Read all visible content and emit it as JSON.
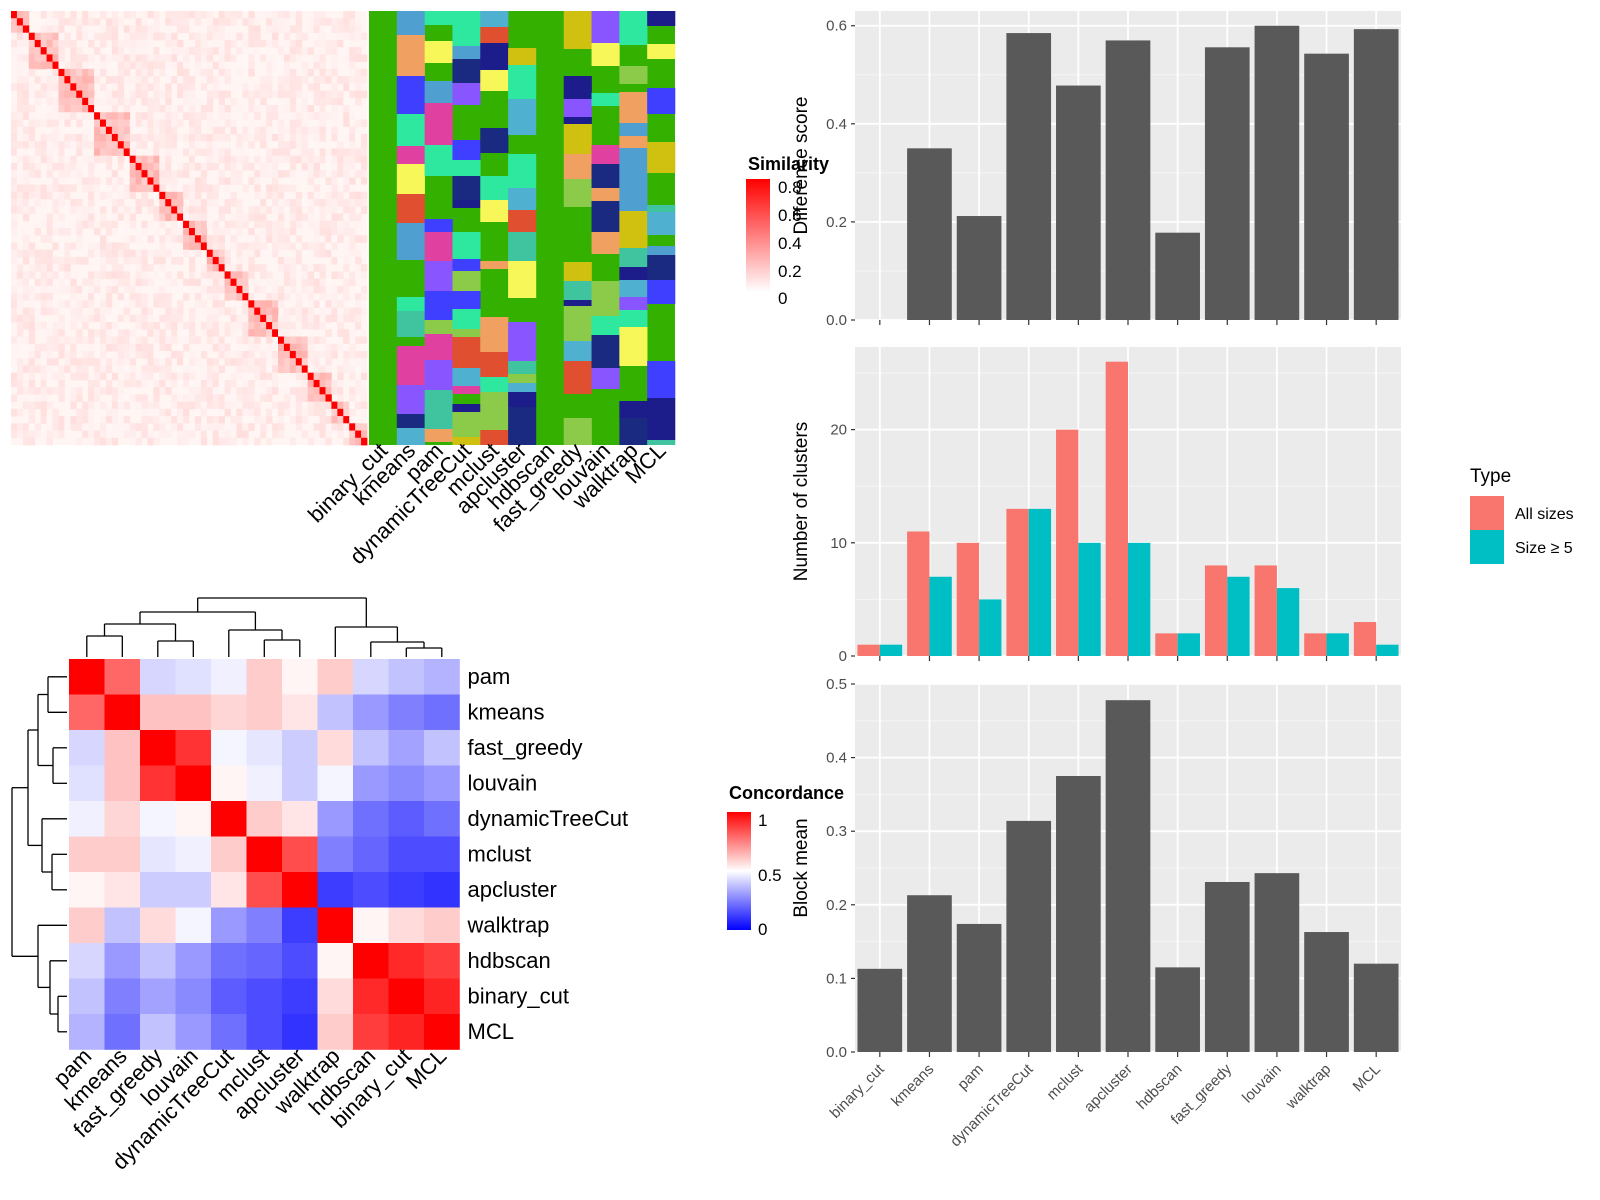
{
  "methods_order": [
    "binary_cut",
    "kmeans",
    "pam",
    "dynamicTreeCut",
    "mclust",
    "apcluster",
    "hdbscan",
    "fast_greedy",
    "louvain",
    "walktrap",
    "MCL"
  ],
  "similarity_heatmap": {
    "legend_title": "Similarity",
    "legend_ticks": [
      "0.8",
      "0.6",
      "0.4",
      "0.2",
      "0"
    ],
    "column_labels": [
      "binary_cut",
      "kmeans",
      "pam",
      "dynamicTreeCut",
      "mclust",
      "apcluster",
      "hdbscan",
      "fast_greedy",
      "louvain",
      "walktrap",
      "MCL"
    ]
  },
  "concordance_heatmap": {
    "legend_title": "Concordance",
    "legend_ticks": [
      "1",
      "0.5",
      "0"
    ],
    "row_labels": [
      "pam",
      "kmeans",
      "fast_greedy",
      "louvain",
      "dynamicTreeCut",
      "mclust",
      "apcluster",
      "walktrap",
      "hdbscan",
      "binary_cut",
      "MCL"
    ],
    "col_labels": [
      "pam",
      "kmeans",
      "fast_greedy",
      "louvain",
      "dynamicTreeCut",
      "mclust",
      "apcluster",
      "walktrap",
      "hdbscan",
      "binary_cut",
      "MCL"
    ],
    "matrix": [
      [
        1.0,
        0.8,
        0.42,
        0.44,
        0.47,
        0.6,
        0.52,
        0.6,
        0.42,
        0.38,
        0.35
      ],
      [
        0.8,
        1.0,
        0.62,
        0.62,
        0.58,
        0.6,
        0.55,
        0.38,
        0.3,
        0.25,
        0.22
      ],
      [
        0.42,
        0.62,
        1.0,
        0.9,
        0.48,
        0.45,
        0.4,
        0.57,
        0.38,
        0.32,
        0.38
      ],
      [
        0.44,
        0.62,
        0.9,
        1.0,
        0.52,
        0.47,
        0.4,
        0.48,
        0.3,
        0.27,
        0.3
      ],
      [
        0.47,
        0.58,
        0.48,
        0.52,
        1.0,
        0.6,
        0.55,
        0.3,
        0.22,
        0.18,
        0.22
      ],
      [
        0.6,
        0.6,
        0.45,
        0.47,
        0.6,
        1.0,
        0.85,
        0.25,
        0.2,
        0.15,
        0.15
      ],
      [
        0.52,
        0.55,
        0.4,
        0.4,
        0.55,
        0.85,
        1.0,
        0.12,
        0.15,
        0.12,
        0.1
      ],
      [
        0.6,
        0.38,
        0.57,
        0.48,
        0.3,
        0.25,
        0.12,
        1.0,
        0.52,
        0.57,
        0.6
      ],
      [
        0.42,
        0.3,
        0.38,
        0.3,
        0.22,
        0.2,
        0.15,
        0.52,
        1.0,
        0.92,
        0.88
      ],
      [
        0.38,
        0.25,
        0.32,
        0.27,
        0.18,
        0.15,
        0.12,
        0.57,
        0.92,
        1.0,
        0.93
      ],
      [
        0.35,
        0.22,
        0.38,
        0.3,
        0.22,
        0.15,
        0.1,
        0.6,
        0.88,
        0.93,
        1.0
      ]
    ]
  },
  "chart_data": [
    {
      "type": "bar",
      "categories": [
        "binary_cut",
        "kmeans",
        "pam",
        "dynamicTreeCut",
        "mclust",
        "apcluster",
        "hdbscan",
        "fast_greedy",
        "louvain",
        "walktrap",
        "MCL"
      ],
      "values": [
        0.0,
        0.35,
        0.212,
        0.585,
        0.478,
        0.57,
        0.178,
        0.556,
        0.6,
        0.543,
        0.593
      ],
      "ylabel": "Difference score",
      "ylim": [
        0,
        0.63
      ],
      "yticks": [
        "0.0",
        "0.2",
        "0.4",
        "0.6"
      ],
      "ytick_values": [
        0,
        0.2,
        0.4,
        0.6
      ],
      "grid": true
    },
    {
      "type": "bar",
      "categories": [
        "binary_cut",
        "kmeans",
        "pam",
        "dynamicTreeCut",
        "mclust",
        "apcluster",
        "hdbscan",
        "fast_greedy",
        "louvain",
        "walktrap",
        "MCL"
      ],
      "series": [
        {
          "name": "All sizes",
          "values": [
            1,
            11,
            10,
            13,
            20,
            26,
            2,
            8,
            8,
            2,
            3
          ]
        },
        {
          "name": "Size ≥ 5",
          "values": [
            1,
            7,
            5,
            13,
            10,
            10,
            2,
            7,
            6,
            2,
            1
          ]
        }
      ],
      "ylabel": "Number of clusters",
      "ylim": [
        0,
        27.3
      ],
      "yticks": [
        "0",
        "10",
        "20"
      ],
      "ytick_values": [
        0,
        10,
        20
      ],
      "legend_title": "Type",
      "legend_position": "right",
      "colors": [
        "#F8766D",
        "#00BFC4"
      ],
      "grid": true
    },
    {
      "type": "bar",
      "categories": [
        "binary_cut",
        "kmeans",
        "pam",
        "dynamicTreeCut",
        "mclust",
        "apcluster",
        "hdbscan",
        "fast_greedy",
        "louvain",
        "walktrap",
        "MCL"
      ],
      "values": [
        0.113,
        0.213,
        0.174,
        0.314,
        0.375,
        0.478,
        0.115,
        0.231,
        0.243,
        0.163,
        0.12
      ],
      "ylabel": "Block mean",
      "ylim": [
        0,
        0.5
      ],
      "yticks": [
        "0.0",
        "0.1",
        "0.2",
        "0.3",
        "0.4",
        "0.5"
      ],
      "ytick_values": [
        0,
        0.1,
        0.2,
        0.3,
        0.4,
        0.5
      ],
      "grid": true
    }
  ]
}
